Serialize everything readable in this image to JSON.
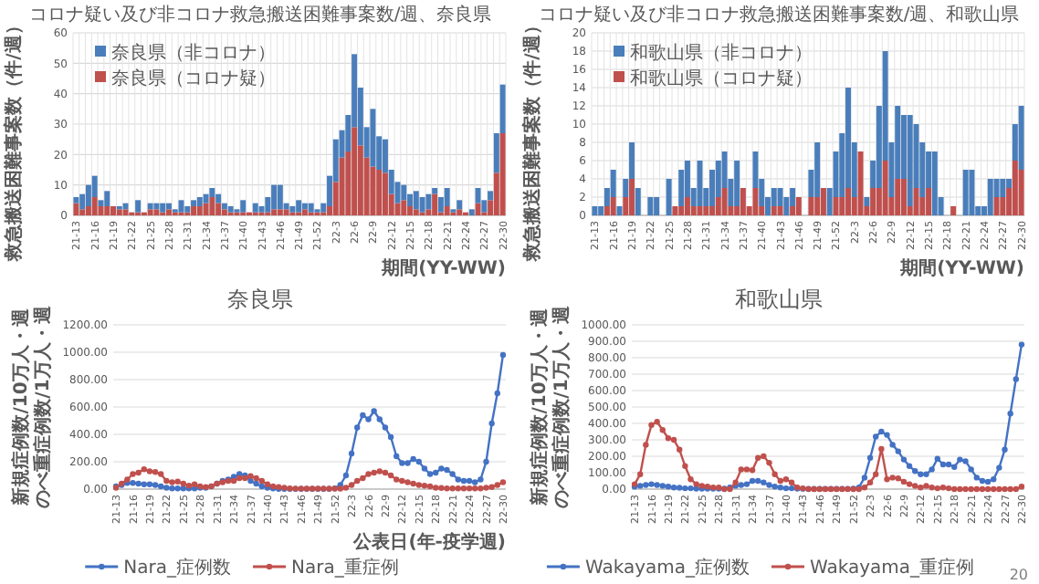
{
  "chart_data": [
    {
      "type": "bar",
      "title": "コロナ疑い及び非コロナ救急搬送困難事案数/週、奈良県",
      "xlabel": "期間(YY-WW)",
      "ylabel": "救急搬送困難事案数（件/週）",
      "stacked": true,
      "grid": true,
      "legend": "top left",
      "ylim": [
        0,
        60
      ],
      "yticks": [
        0,
        10,
        20,
        30,
        40,
        50,
        60
      ],
      "categories": [
        "21-13",
        null,
        null,
        "21-16",
        null,
        null,
        "21-19",
        null,
        null,
        "21-22",
        null,
        null,
        "21-25",
        null,
        null,
        "21-28",
        null,
        null,
        "21-31",
        null,
        null,
        "21-34",
        null,
        null,
        "21-37",
        null,
        null,
        "21-40",
        null,
        null,
        "21-43",
        null,
        null,
        "21-46",
        null,
        null,
        "21-49",
        null,
        null,
        "21-52",
        null,
        null,
        "22-3",
        null,
        null,
        "22-6",
        null,
        null,
        "22-9",
        null,
        null,
        "22-12",
        null,
        null,
        "22-15",
        null,
        null,
        "22-18",
        null,
        null,
        "22-21",
        null,
        null,
        "22-24",
        null,
        null,
        "22-27",
        null,
        null,
        "22-30"
      ],
      "series": [
        {
          "name": "奈良県（コロナ疑）",
          "color": "#c0504d",
          "values": [
            4,
            2,
            3,
            6,
            3,
            3,
            3,
            2,
            2,
            1,
            1,
            1,
            2,
            2,
            1,
            2,
            1,
            1,
            1,
            3,
            3,
            4,
            6,
            4,
            2,
            1,
            1,
            1,
            1,
            1,
            1,
            1,
            2,
            2,
            2,
            1,
            1,
            2,
            1,
            1,
            1,
            3,
            11,
            19,
            21,
            29,
            23,
            19,
            16,
            15,
            14,
            7,
            4,
            5,
            3,
            2,
            1,
            2,
            7,
            1,
            3,
            1,
            2,
            1,
            0,
            4,
            1,
            5,
            14,
            27
          ]
        },
        {
          "name": "奈良県（非コロナ）",
          "color": "#4a7ebb",
          "values": [
            2,
            5,
            7,
            7,
            2,
            5,
            0,
            1,
            2,
            0,
            4,
            0,
            2,
            2,
            3,
            2,
            1,
            4,
            2,
            2,
            3,
            3,
            3,
            3,
            2,
            2,
            1,
            4,
            0,
            3,
            2,
            5,
            8,
            8,
            2,
            2,
            4,
            2,
            3,
            1,
            3,
            10,
            14,
            9,
            12,
            24,
            19,
            10,
            19,
            11,
            11,
            8,
            7,
            5,
            4,
            6,
            5,
            5,
            2,
            5,
            6,
            1,
            3,
            0,
            2,
            5,
            4,
            3,
            13,
            16
          ]
        }
      ]
    },
    {
      "type": "bar",
      "title": "コロナ疑い及び非コロナ救急搬送困難事案数/週、和歌山県",
      "xlabel": "期間(YY-WW)",
      "ylabel": "救急搬送困難事案数（件/週）",
      "stacked": true,
      "grid": true,
      "legend": "top left",
      "ylim": [
        0,
        20
      ],
      "yticks": [
        0,
        2,
        4,
        6,
        8,
        10,
        12,
        14,
        16,
        18,
        20
      ],
      "categories": [
        "21-13",
        null,
        null,
        "21-16",
        null,
        null,
        "21-19",
        null,
        null,
        "21-22",
        null,
        null,
        "21-25",
        null,
        null,
        "21-28",
        null,
        null,
        "21-31",
        null,
        null,
        "21-34",
        null,
        null,
        "21-37",
        null,
        null,
        "21-40",
        null,
        null,
        "21-43",
        null,
        null,
        "21-46",
        null,
        null,
        "21-49",
        null,
        null,
        "21-52",
        null,
        null,
        "22-3",
        null,
        null,
        "22-6",
        null,
        null,
        "22-9",
        null,
        null,
        "22-12",
        null,
        null,
        "22-15",
        null,
        null,
        "22-18",
        null,
        null,
        "22-21",
        null,
        null,
        "22-24",
        null,
        null,
        "22-27",
        null,
        null,
        "22-30"
      ],
      "series": [
        {
          "name": "和歌山県（コロナ疑）",
          "color": "#c0504d",
          "values": [
            0,
            0,
            1,
            2,
            0,
            2,
            4,
            0,
            0,
            0,
            0,
            0,
            0,
            1,
            1,
            2,
            1,
            1,
            1,
            1,
            2,
            3,
            1,
            1,
            3,
            1,
            3,
            1,
            0,
            1,
            1,
            0,
            1,
            2,
            0,
            2,
            2,
            3,
            0,
            2,
            2,
            3,
            2,
            7,
            1,
            3,
            3,
            6,
            2,
            4,
            4,
            1,
            3,
            2,
            3,
            0,
            0,
            0,
            1,
            0,
            0,
            0,
            0,
            0,
            0,
            2,
            2,
            3,
            6,
            5
          ]
        },
        {
          "name": "和歌山県（非コロナ）",
          "color": "#4a7ebb",
          "values": [
            1,
            1,
            2,
            3,
            1,
            2,
            4,
            3,
            0,
            2,
            2,
            0,
            4,
            0,
            4,
            4,
            2,
            5,
            2,
            4,
            4,
            4,
            3,
            5,
            0,
            0,
            4,
            3,
            2,
            2,
            2,
            2,
            2,
            0,
            0,
            3,
            6,
            0,
            3,
            5,
            7,
            11,
            6,
            0,
            1,
            3,
            9,
            12,
            6,
            8,
            7,
            10,
            7,
            6,
            4,
            7,
            2,
            0,
            0,
            0,
            5,
            5,
            1,
            1,
            4,
            2,
            2,
            1,
            4,
            7
          ]
        }
      ]
    },
    {
      "type": "line",
      "title": "奈良県",
      "xlabel": "公表日(年-疫学週)",
      "ylabel": [
        "新規症例数/10万人・週",
        "のべ重症例数/1万人・週"
      ],
      "grid": "y",
      "legend": "bottom",
      "marker": "circle",
      "ylim": [
        0,
        1200
      ],
      "yticks": [
        {
          "value": 0,
          "label": "0.00"
        },
        {
          "value": 200,
          "label": "200.00"
        },
        {
          "value": 400,
          "label": "400.00"
        },
        {
          "value": 600,
          "label": "600.00"
        },
        {
          "value": 800,
          "label": "800.00"
        },
        {
          "value": 1000,
          "label": "1000.00"
        },
        {
          "value": 1200,
          "label": "1200.00"
        }
      ],
      "categories": [
        "21-13",
        null,
        null,
        "21-16",
        null,
        null,
        "21-19",
        null,
        null,
        "21-22",
        null,
        null,
        "21-25",
        null,
        null,
        "21-28",
        null,
        null,
        "21-31",
        null,
        null,
        "21-34",
        null,
        null,
        "21-37",
        null,
        null,
        "21-40",
        null,
        null,
        "21-43",
        null,
        null,
        "21-46",
        null,
        null,
        "21-49",
        null,
        null,
        "21-52",
        null,
        null,
        "22-3",
        null,
        null,
        "22-6",
        null,
        null,
        "22-9",
        null,
        null,
        "22-12",
        null,
        null,
        "22-15",
        null,
        null,
        "22-18",
        null,
        null,
        "22-21",
        null,
        null,
        "22-24",
        null,
        null,
        "22-27",
        null,
        null,
        "22-30"
      ],
      "series": [
        {
          "name": "Nara_症例数",
          "color": "#4472c4",
          "values": [
            20,
            30,
            45,
            45,
            40,
            35,
            35,
            30,
            20,
            10,
            5,
            5,
            5,
            5,
            5,
            10,
            10,
            20,
            40,
            60,
            70,
            90,
            110,
            100,
            60,
            40,
            20,
            10,
            5,
            2,
            2,
            2,
            2,
            2,
            2,
            2,
            2,
            2,
            2,
            5,
            30,
            100,
            260,
            450,
            540,
            510,
            570,
            510,
            450,
            380,
            240,
            190,
            190,
            220,
            200,
            150,
            110,
            120,
            150,
            140,
            110,
            70,
            60,
            60,
            50,
            70,
            200,
            480,
            700,
            980
          ]
        },
        {
          "name": "Nara_重症例",
          "color": "#c0504d",
          "values": [
            10,
            40,
            70,
            110,
            120,
            145,
            130,
            125,
            110,
            60,
            50,
            55,
            40,
            25,
            35,
            20,
            15,
            20,
            40,
            50,
            60,
            60,
            80,
            80,
            95,
            80,
            60,
            35,
            20,
            15,
            10,
            5,
            3,
            3,
            3,
            3,
            3,
            3,
            3,
            3,
            3,
            10,
            30,
            60,
            80,
            110,
            120,
            130,
            120,
            100,
            70,
            60,
            50,
            40,
            30,
            25,
            20,
            10,
            8,
            5,
            5,
            5,
            5,
            5,
            5,
            5,
            10,
            15,
            30,
            50
          ]
        }
      ]
    },
    {
      "type": "line",
      "title": "和歌山県",
      "ylabel": [
        "新規症例数/10万人・週",
        "のべ重症例数/1万人・週"
      ],
      "grid": "y",
      "legend": "bottom",
      "marker": "circle",
      "ylim": [
        0,
        1000
      ],
      "yticks": [
        {
          "value": 0,
          "label": "0.00"
        },
        {
          "value": 100,
          "label": "100.00"
        },
        {
          "value": 200,
          "label": "200.00"
        },
        {
          "value": 300,
          "label": "300.00"
        },
        {
          "value": 400,
          "label": "400.00"
        },
        {
          "value": 500,
          "label": "500.00"
        },
        {
          "value": 600,
          "label": "600.00"
        },
        {
          "value": 700,
          "label": "700.00"
        },
        {
          "value": 800,
          "label": "800.00"
        },
        {
          "value": 900,
          "label": "900.00"
        },
        {
          "value": 1000,
          "label": "1000.00"
        }
      ],
      "categories": [
        "21-13",
        null,
        null,
        "21-16",
        null,
        null,
        "21-19",
        null,
        null,
        "21-22",
        null,
        null,
        "21-25",
        null,
        null,
        "21-28",
        null,
        null,
        "21-31",
        null,
        null,
        "21-34",
        null,
        null,
        "21-37",
        null,
        null,
        "21-40",
        null,
        null,
        "21-43",
        null,
        null,
        "21-46",
        null,
        null,
        "21-49",
        null,
        null,
        "21-52",
        null,
        null,
        "22-3",
        null,
        null,
        "22-6",
        null,
        null,
        "22-9",
        null,
        null,
        "22-12",
        null,
        null,
        "22-15",
        null,
        null,
        "22-18",
        null,
        null,
        "22-21",
        null,
        null,
        "22-24",
        null,
        null,
        "22-27",
        null,
        null,
        "22-30"
      ],
      "annotations": [
        "20"
      ],
      "series": [
        {
          "name": "Wakayama_症例数",
          "color": "#4472c4",
          "values": [
            15,
            20,
            25,
            30,
            25,
            20,
            15,
            10,
            8,
            5,
            5,
            3,
            3,
            3,
            3,
            3,
            3,
            10,
            20,
            25,
            30,
            50,
            50,
            40,
            25,
            15,
            10,
            5,
            5,
            3,
            2,
            2,
            2,
            2,
            2,
            2,
            2,
            2,
            2,
            3,
            10,
            70,
            190,
            320,
            350,
            330,
            270,
            230,
            180,
            140,
            110,
            90,
            90,
            120,
            185,
            150,
            150,
            135,
            180,
            170,
            120,
            70,
            50,
            45,
            60,
            130,
            240,
            460,
            670,
            880
          ]
        },
        {
          "name": "Wakayama_重症例",
          "color": "#c0504d",
          "values": [
            30,
            90,
            270,
            390,
            410,
            360,
            310,
            300,
            240,
            140,
            60,
            30,
            20,
            15,
            10,
            10,
            0,
            0,
            40,
            120,
            120,
            115,
            190,
            200,
            160,
            90,
            50,
            60,
            40,
            10,
            5,
            0,
            0,
            0,
            0,
            0,
            0,
            0,
            0,
            0,
            0,
            10,
            40,
            90,
            245,
            60,
            70,
            65,
            45,
            30,
            20,
            10,
            20,
            10,
            5,
            10,
            5,
            0,
            0,
            0,
            0,
            0,
            0,
            0,
            0,
            0,
            0,
            0,
            0,
            15
          ]
        }
      ]
    }
  ]
}
